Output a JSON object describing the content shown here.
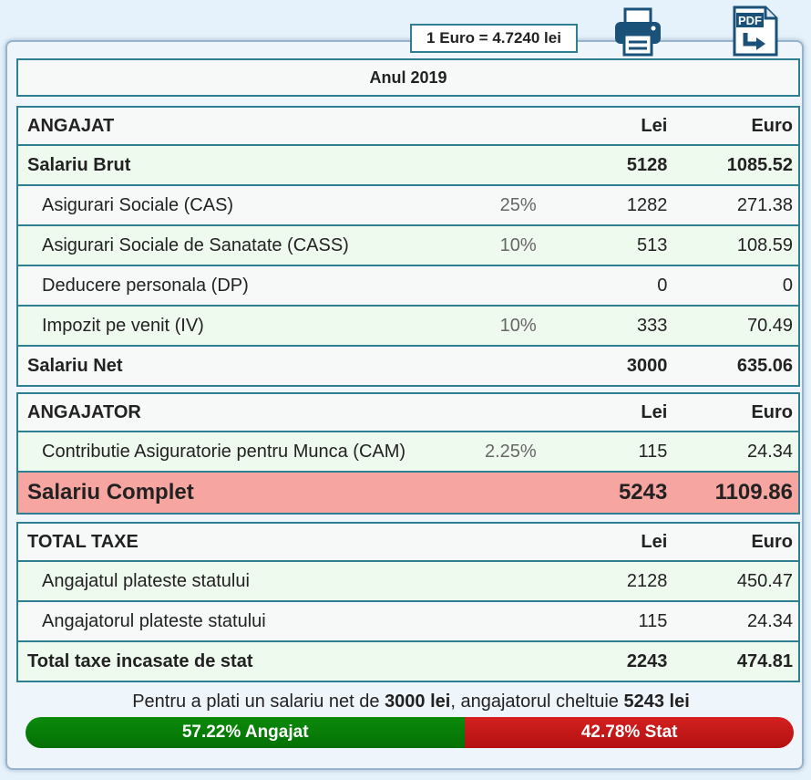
{
  "exchange_rate": "1 Euro = 4.7240 lei",
  "icons": {
    "print": "printer-icon",
    "pdf_label": "PDF"
  },
  "year_title": "Anul 2019",
  "employee": {
    "header": {
      "label": "ANGAJAT",
      "lei": "Lei",
      "eur": "Euro"
    },
    "rows": [
      {
        "label": "Salariu Brut",
        "pct": "",
        "lei": "5128",
        "eur": "1085.52"
      },
      {
        "label": "Asigurari Sociale (CAS)",
        "pct": "25%",
        "lei": "1282",
        "eur": "271.38"
      },
      {
        "label": "Asigurari Sociale de Sanatate (CASS)",
        "pct": "10%",
        "lei": "513",
        "eur": "108.59"
      },
      {
        "label": "Deducere personala (DP)",
        "pct": "",
        "lei": "0",
        "eur": "0"
      },
      {
        "label": "Impozit pe venit (IV)",
        "pct": "10%",
        "lei": "333",
        "eur": "70.49"
      },
      {
        "label": "Salariu Net",
        "pct": "",
        "lei": "3000",
        "eur": "635.06"
      }
    ]
  },
  "employer": {
    "header": {
      "label": "ANGAJATOR",
      "lei": "Lei",
      "eur": "Euro"
    },
    "rows": [
      {
        "label": "Contributie Asiguratorie pentru Munca (CAM)",
        "pct": "2.25%",
        "lei": "115",
        "eur": "24.34"
      }
    ],
    "total": {
      "label": "Salariu Complet",
      "lei": "5243",
      "eur": "1109.86"
    }
  },
  "taxes": {
    "header": {
      "label": "TOTAL TAXE",
      "lei": "Lei",
      "eur": "Euro"
    },
    "rows": [
      {
        "label": "Angajatul plateste statului",
        "lei": "2128",
        "eur": "450.47"
      },
      {
        "label": "Angajatorul plateste statului",
        "lei": "115",
        "eur": "24.34"
      },
      {
        "label": "Total taxe incasate de stat",
        "lei": "2243",
        "eur": "474.81"
      }
    ]
  },
  "summary": {
    "part1": "Pentru a plati un salariu net de ",
    "net": "3000 lei",
    "part2": ", angajatorul cheltuie ",
    "total": "5243 lei"
  },
  "split_bar": {
    "angajat_pct": 57.22,
    "angajat_label": "57.22% Angajat",
    "stat_pct": 42.78,
    "stat_label": "42.78% Stat"
  },
  "colors": {
    "border": "#2f7f93",
    "highlight_row": "#f7a5a0",
    "angajat_bar": "#0b8a0b",
    "stat_bar": "#c61818"
  }
}
